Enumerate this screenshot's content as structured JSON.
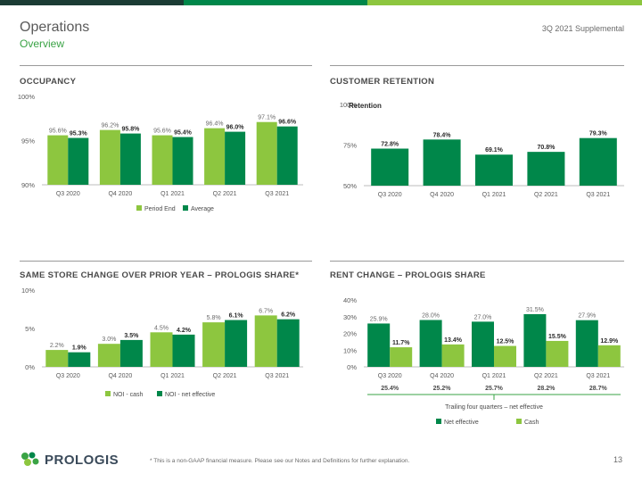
{
  "header": {
    "title": "Operations",
    "subtitle": "Overview",
    "supplemental": "3Q 2021 Supplemental"
  },
  "colors": {
    "light_green": "#8dc63f",
    "dark_green": "#00874a",
    "accent_green": "#3aa345",
    "topbar": [
      "#1b3c34",
      "#00874a",
      "#8dc63f"
    ]
  },
  "panels": {
    "occupancy": {
      "title": "OCCUPANCY"
    },
    "retention": {
      "title": "CUSTOMER RETENTION"
    },
    "same_store": {
      "title": "SAME STORE CHANGE OVER PRIOR YEAR – PROLOGIS SHARE*"
    },
    "rent_change": {
      "title": "RENT CHANGE – PROLOGIS SHARE"
    }
  },
  "chart_data": [
    {
      "id": "occupancy",
      "type": "bar",
      "categories": [
        "Q3 2020",
        "Q4 2020",
        "Q1 2021",
        "Q2 2021",
        "Q3 2021"
      ],
      "series": [
        {
          "name": "Period End",
          "values": [
            95.6,
            96.2,
            95.6,
            96.4,
            97.1
          ],
          "labels": [
            "95.6%",
            "96.2%",
            "95.6%",
            "96.4%",
            "97.1%"
          ],
          "color": "#8dc63f"
        },
        {
          "name": "Average",
          "values": [
            95.3,
            95.8,
            95.4,
            96.0,
            96.6
          ],
          "labels": [
            "95.3%",
            "95.8%",
            "95.4%",
            "96.0%",
            "96.6%"
          ],
          "color": "#00874a"
        }
      ],
      "ylim": [
        90,
        100
      ],
      "yticks": [
        90,
        95,
        100
      ],
      "ytick_labels": [
        "90%",
        "95%",
        "100%"
      ],
      "legend": "bottom"
    },
    {
      "id": "retention",
      "type": "bar",
      "categories": [
        "Q3 2020",
        "Q4 2020",
        "Q1 2021",
        "Q2 2021",
        "Q3 2021"
      ],
      "series": [
        {
          "name": "Retention",
          "values": [
            72.8,
            78.4,
            69.1,
            70.8,
            79.3
          ],
          "labels": [
            "72.8%",
            "78.4%",
            "69.1%",
            "70.8%",
            "79.3%"
          ],
          "color": "#00874a"
        }
      ],
      "ylim": [
        50,
        100
      ],
      "yticks": [
        50,
        75,
        100
      ],
      "ytick_labels": [
        "50%",
        "75%",
        "100%"
      ],
      "legend": "top-left"
    },
    {
      "id": "same_store",
      "type": "bar",
      "categories": [
        "Q3 2020",
        "Q4 2020",
        "Q1 2021",
        "Q2 2021",
        "Q3 2021"
      ],
      "series": [
        {
          "name": "NOI - cash",
          "values": [
            2.2,
            3.0,
            4.5,
            5.8,
            6.7
          ],
          "labels": [
            "2.2%",
            "3.0%",
            "4.5%",
            "5.8%",
            "6.7%"
          ],
          "color": "#8dc63f"
        },
        {
          "name": "NOI - net effective",
          "values": [
            1.9,
            3.5,
            4.2,
            6.1,
            6.2
          ],
          "labels": [
            "1.9%",
            "3.5%",
            "4.2%",
            "6.1%",
            "6.2%"
          ],
          "color": "#00874a"
        }
      ],
      "ylim": [
        0,
        10
      ],
      "yticks": [
        0,
        5,
        10
      ],
      "ytick_labels": [
        "0%",
        "5%",
        "10%"
      ],
      "legend": "bottom"
    },
    {
      "id": "rent_change",
      "type": "bar",
      "categories": [
        "Q3 2020",
        "Q4 2020",
        "Q1 2021",
        "Q2 2021",
        "Q3 2021"
      ],
      "series": [
        {
          "name": "Net effective",
          "values": [
            25.9,
            28.0,
            27.0,
            31.5,
            27.9
          ],
          "labels": [
            "25.9%",
            "28.0%",
            "27.0%",
            "31.5%",
            "27.9%"
          ],
          "color": "#00874a"
        },
        {
          "name": "Cash",
          "values": [
            11.7,
            13.4,
            12.5,
            15.5,
            12.9
          ],
          "labels": [
            "11.7%",
            "13.4%",
            "12.5%",
            "15.5%",
            "12.9%"
          ],
          "color": "#8dc63f"
        }
      ],
      "ylim": [
        0,
        40
      ],
      "yticks": [
        0,
        10,
        20,
        30,
        40
      ],
      "ytick_labels": [
        "0%",
        "10%",
        "20%",
        "30%",
        "40%"
      ],
      "trailing": {
        "values": [
          "25.4%",
          "25.2%",
          "25.7%",
          "28.2%",
          "28.7%"
        ],
        "label": "Trailing four quarters – net effective"
      },
      "legend": "bottom"
    }
  ],
  "footer": {
    "logo_text": "PROLOGIS",
    "footnote": "*  This is a non-GAAP financial measure. Please see our Notes and Definitions for further explanation.",
    "page_number": "13"
  }
}
